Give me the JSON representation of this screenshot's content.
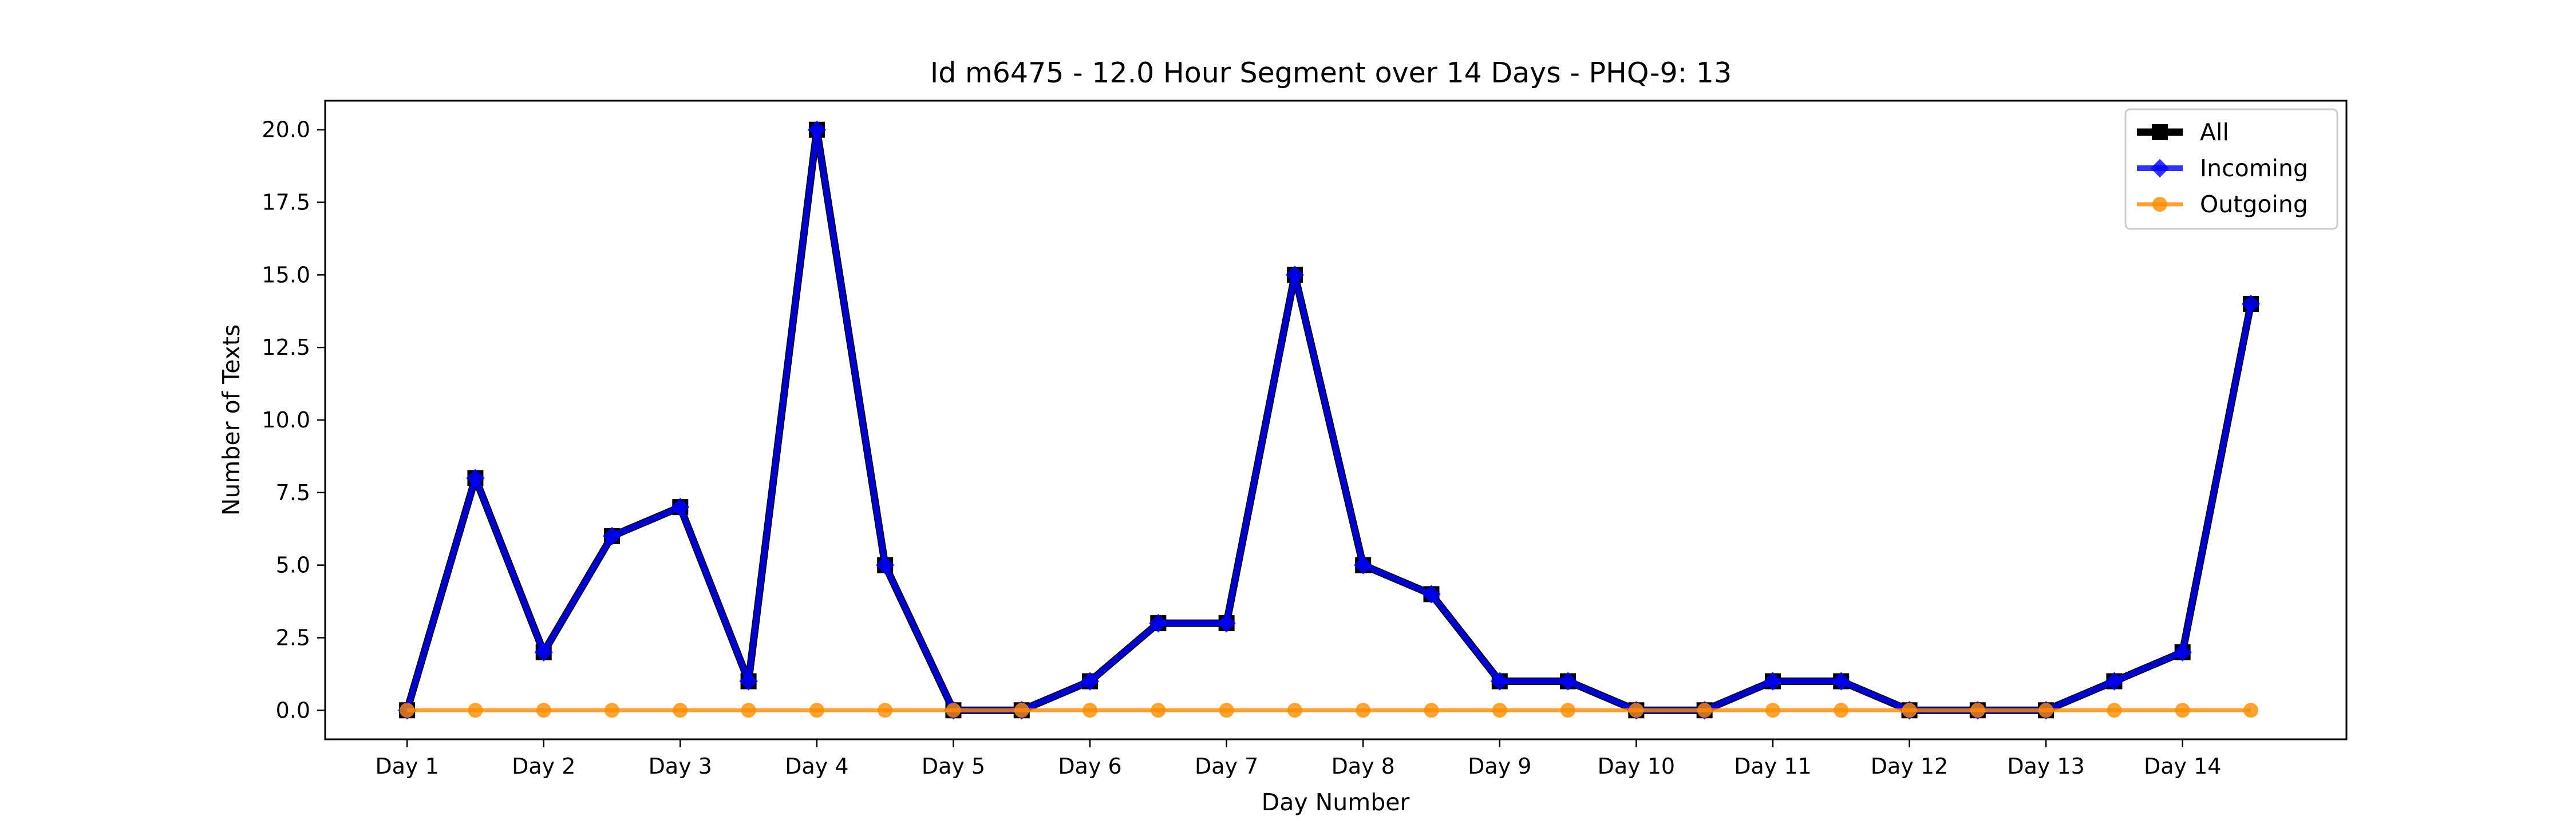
{
  "chart_data": {
    "type": "line",
    "title": "Id m6475 - 12.0 Hour Segment over 14 Days - PHQ-9: 13",
    "xlabel": "Day Number",
    "ylabel": "Number of Texts",
    "x_tick_labels": [
      "Day 1",
      "Day 2",
      "Day 3",
      "Day 4",
      "Day 5",
      "Day 6",
      "Day 7",
      "Day 8",
      "Day 9",
      "Day 10",
      "Day 11",
      "Day 12",
      "Day 13",
      "Day 14"
    ],
    "y_ticks": [
      "0.0",
      "2.5",
      "5.0",
      "7.5",
      "10.0",
      "12.5",
      "15.0",
      "17.5",
      "20.0"
    ],
    "ylim": [
      -1.0,
      21.0
    ],
    "x": [
      1,
      1.5,
      2,
      2.5,
      3,
      3.5,
      4,
      4.5,
      5,
      5.5,
      6,
      6.5,
      7,
      7.5,
      8,
      8.5,
      9,
      9.5,
      10,
      10.5,
      11,
      11.5,
      12,
      12.5,
      13,
      13.5,
      14,
      14.5
    ],
    "xlim": [
      0.4,
      15.2
    ],
    "grid": false,
    "legend_position": "top-right",
    "series": [
      {
        "name": "All",
        "color": "#000000",
        "marker": "square",
        "values": [
          0,
          8,
          2,
          6,
          7,
          1,
          20,
          5,
          0,
          0,
          1,
          3,
          3,
          15,
          5,
          4,
          1,
          1,
          0,
          0,
          1,
          1,
          0,
          0,
          0,
          1,
          2,
          14
        ]
      },
      {
        "name": "Incoming",
        "color": "#0000ff",
        "marker": "diamond",
        "values": [
          0,
          8,
          2,
          6,
          7,
          1,
          20,
          5,
          0,
          0,
          1,
          3,
          3,
          15,
          5,
          4,
          1,
          1,
          0,
          0,
          1,
          1,
          0,
          0,
          0,
          1,
          2,
          14
        ]
      },
      {
        "name": "Outgoing",
        "color": "#ff8c00",
        "marker": "circle",
        "values": [
          0,
          0,
          0,
          0,
          0,
          0,
          0,
          0,
          0,
          0,
          0,
          0,
          0,
          0,
          0,
          0,
          0,
          0,
          0,
          0,
          0,
          0,
          0,
          0,
          0,
          0,
          0,
          0
        ]
      }
    ]
  }
}
